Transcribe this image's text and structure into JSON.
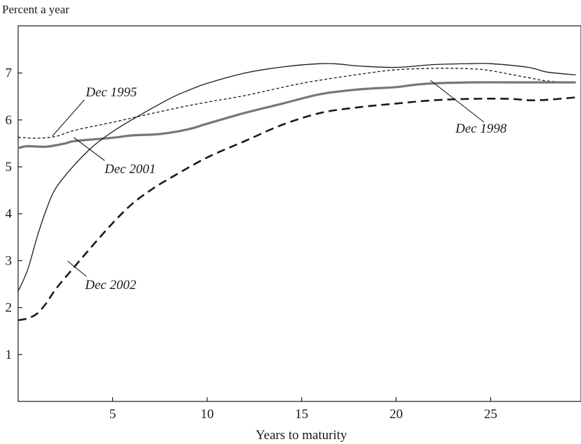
{
  "chart_data": {
    "type": "line",
    "title": "",
    "ylabel": "Percent a year",
    "xlabel": "Years to maturity",
    "xlim": [
      0,
      29.5
    ],
    "ylim": [
      0,
      8
    ],
    "xticks": [
      "5",
      "10",
      "15",
      "20",
      "25"
    ],
    "yticks": [
      "1",
      "2",
      "3",
      "4",
      "5",
      "6",
      "7"
    ],
    "grid": false,
    "legend": "inline labels with leader lines",
    "series": [
      {
        "name": "Dec 1995",
        "style": "dotted",
        "x": [
          0,
          1,
          2,
          3,
          5,
          8,
          10,
          12,
          15,
          18,
          20,
          22,
          23,
          24,
          25,
          27,
          28,
          29.5
        ],
        "values": [
          5.63,
          5.61,
          5.65,
          5.78,
          5.95,
          6.22,
          6.38,
          6.52,
          6.78,
          6.97,
          7.07,
          7.1,
          7.1,
          7.09,
          7.05,
          6.9,
          6.83,
          6.8
        ]
      },
      {
        "name": "Dec 1998",
        "style": "thick-gray",
        "x": [
          0,
          0.5,
          1.5,
          2.5,
          3,
          5,
          6,
          7.5,
          9,
          10,
          12,
          14,
          16,
          18,
          20,
          21,
          22,
          24,
          26,
          28,
          29.5
        ],
        "values": [
          5.4,
          5.44,
          5.43,
          5.5,
          5.55,
          5.62,
          5.67,
          5.7,
          5.8,
          5.92,
          6.15,
          6.35,
          6.55,
          6.65,
          6.7,
          6.75,
          6.78,
          6.8,
          6.8,
          6.8,
          6.8
        ]
      },
      {
        "name": "Dec 2001",
        "style": "thin-solid",
        "x": [
          0,
          0.5,
          1,
          1.5,
          2,
          3,
          4,
          5,
          6,
          8,
          9,
          10,
          12,
          14,
          16,
          17,
          18,
          20,
          22,
          24,
          25,
          27,
          28,
          29.5
        ],
        "values": [
          2.35,
          2.8,
          3.5,
          4.1,
          4.55,
          5.05,
          5.45,
          5.75,
          6.0,
          6.45,
          6.63,
          6.78,
          7.0,
          7.13,
          7.2,
          7.19,
          7.15,
          7.12,
          7.18,
          7.2,
          7.2,
          7.12,
          7.02,
          6.96
        ]
      },
      {
        "name": "Dec 2002",
        "style": "dashed",
        "x": [
          0,
          0.5,
          1,
          1.5,
          2,
          3,
          4,
          5,
          6,
          7,
          8,
          10,
          12,
          14,
          16,
          18,
          20,
          22,
          24,
          26,
          27,
          28,
          29.5
        ],
        "values": [
          1.73,
          1.77,
          1.87,
          2.1,
          2.4,
          2.88,
          3.35,
          3.8,
          4.2,
          4.5,
          4.75,
          5.2,
          5.55,
          5.9,
          6.15,
          6.27,
          6.35,
          6.42,
          6.45,
          6.45,
          6.42,
          6.43,
          6.48
        ]
      }
    ]
  }
}
